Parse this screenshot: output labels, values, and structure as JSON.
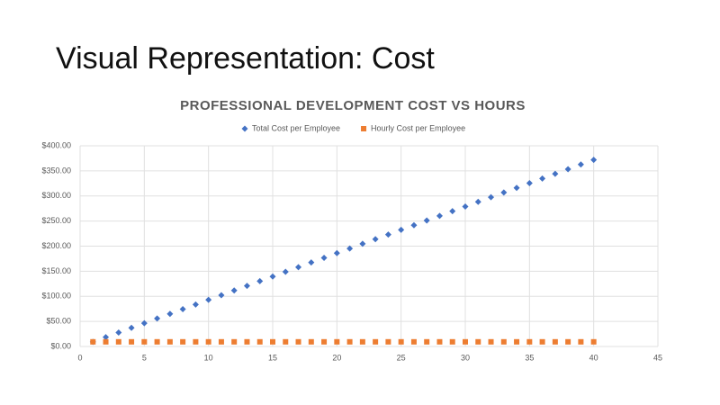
{
  "slide_title": "Visual Representation: Cost",
  "chart_data": {
    "type": "scatter",
    "title": "PROFESSIONAL DEVELOPMENT COST VS HOURS",
    "x": [
      1,
      2,
      3,
      4,
      5,
      6,
      7,
      8,
      9,
      10,
      11,
      12,
      13,
      14,
      15,
      16,
      17,
      18,
      19,
      20,
      21,
      22,
      23,
      24,
      25,
      26,
      27,
      28,
      29,
      30,
      31,
      32,
      33,
      34,
      35,
      36,
      37,
      38,
      39,
      40
    ],
    "series": [
      {
        "name": "Total Cost per Employee",
        "color": "#4472c4",
        "marker": "diamond",
        "values": [
          9.3,
          18.6,
          27.9,
          37.2,
          46.5,
          55.8,
          65.1,
          74.4,
          83.7,
          93,
          102.3,
          111.6,
          120.9,
          130.2,
          139.5,
          148.8,
          158.1,
          167.4,
          176.7,
          186,
          195.3,
          204.6,
          213.9,
          223.2,
          232.5,
          241.8,
          251.1,
          260.4,
          269.7,
          279,
          288.3,
          297.6,
          306.9,
          316.2,
          325.5,
          334.8,
          344.1,
          353.4,
          362.7,
          372
        ]
      },
      {
        "name": "Hourly Cost per Employee",
        "color": "#ed7d31",
        "marker": "square",
        "values": [
          9.3,
          9.3,
          9.3,
          9.3,
          9.3,
          9.3,
          9.3,
          9.3,
          9.3,
          9.3,
          9.3,
          9.3,
          9.3,
          9.3,
          9.3,
          9.3,
          9.3,
          9.3,
          9.3,
          9.3,
          9.3,
          9.3,
          9.3,
          9.3,
          9.3,
          9.3,
          9.3,
          9.3,
          9.3,
          9.3,
          9.3,
          9.3,
          9.3,
          9.3,
          9.3,
          9.3,
          9.3,
          9.3,
          9.3,
          9.3
        ]
      }
    ],
    "xlim": [
      0,
      45
    ],
    "xticks": [
      0,
      5,
      10,
      15,
      20,
      25,
      30,
      35,
      40,
      45
    ],
    "ylim": [
      0,
      400
    ],
    "yticks": [
      {
        "value": 0,
        "label": "$0.00"
      },
      {
        "value": 50,
        "label": "$50.00"
      },
      {
        "value": 100,
        "label": "$100.00"
      },
      {
        "value": 150,
        "label": "$150.00"
      },
      {
        "value": 200,
        "label": "$200.00"
      },
      {
        "value": 250,
        "label": "$250.00"
      },
      {
        "value": 300,
        "label": "$300.00"
      },
      {
        "value": 350,
        "label": "$350.00"
      },
      {
        "value": 400,
        "label": "$400.00"
      }
    ],
    "grid": true,
    "legend": "top"
  }
}
